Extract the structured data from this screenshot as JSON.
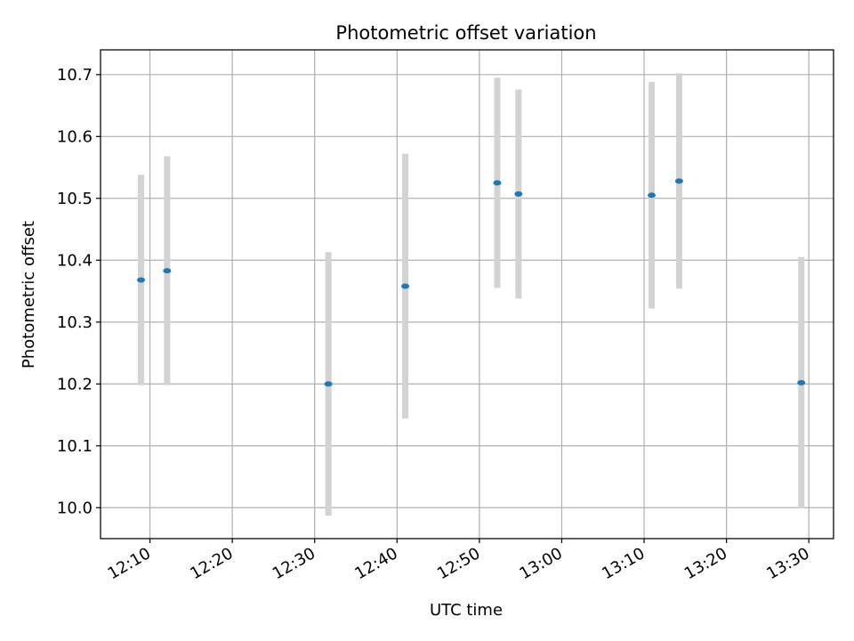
{
  "chart_data": {
    "type": "scatter",
    "title": "Photometric offset variation",
    "xlabel": "UTC time",
    "ylabel": "Photometric offset",
    "grid": true,
    "xlim": [
      "12:04",
      "13:33"
    ],
    "ylim": [
      9.95,
      10.74
    ],
    "x_ticks": [
      "12:10",
      "12:20",
      "12:30",
      "12:40",
      "12:50",
      "13:00",
      "13:10",
      "13:20",
      "13:30"
    ],
    "y_ticks": [
      10.0,
      10.1,
      10.2,
      10.3,
      10.4,
      10.5,
      10.6,
      10.7
    ],
    "y_tick_labels": [
      "10.0",
      "10.1",
      "10.2",
      "10.3",
      "10.4",
      "10.5",
      "10.6",
      "10.7"
    ],
    "series": [
      {
        "x": [
          "12:08:55",
          "12:12:05",
          "12:31:40",
          "12:41:00",
          "12:52:10",
          "12:54:45",
          "13:10:55",
          "13:14:15",
          "13:29:05"
        ],
        "y": [
          10.368,
          10.383,
          10.2,
          10.358,
          10.525,
          10.507,
          10.505,
          10.528,
          10.202
        ],
        "error": [
          0.17,
          0.185,
          0.213,
          0.214,
          0.17,
          0.169,
          0.183,
          0.174,
          0.203
        ]
      }
    ],
    "colors": {
      "marker": "#1f77b4",
      "errorbar": "#d3d3d3",
      "grid": "#b0b0b0"
    }
  }
}
